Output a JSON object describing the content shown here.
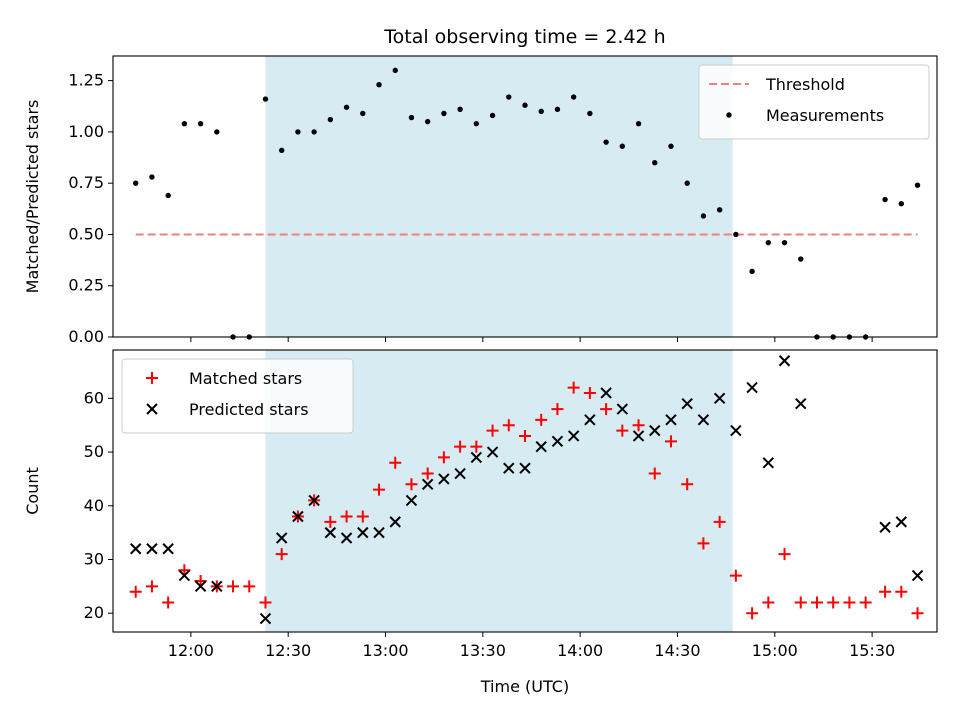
{
  "chart_data": [
    {
      "type": "scatter",
      "title": "Total observing time = 2.42 h",
      "ylabel": "Matched/Predicted stars",
      "xlabel": "",
      "xlim": [
        "11:36",
        "15:50"
      ],
      "ylim": [
        0,
        1.37
      ],
      "yticks": [
        0.0,
        0.25,
        0.5,
        0.75,
        1.0,
        1.25
      ],
      "ytick_labels": [
        "0.00",
        "0.25",
        "0.50",
        "0.75",
        "1.00",
        "1.25"
      ],
      "shaded_span": [
        "12:23",
        "14:47"
      ],
      "legend": {
        "placement": "top-right",
        "entries": [
          {
            "label": "Threshold",
            "kind": "dashed-line",
            "color": "#f08080"
          },
          {
            "label": "Measurements",
            "kind": "dot",
            "color": "#000000"
          }
        ]
      },
      "threshold": {
        "name": "Threshold",
        "value": 0.5,
        "x_range": [
          "11:43",
          "15:44"
        ],
        "color": "#f08080"
      },
      "series": [
        {
          "name": "Measurements",
          "color": "#000000",
          "points": [
            [
              "11:43",
              0.75
            ],
            [
              "11:48",
              0.78
            ],
            [
              "11:53",
              0.69
            ],
            [
              "11:58",
              1.04
            ],
            [
              "12:03",
              1.04
            ],
            [
              "12:08",
              1.0
            ],
            [
              "12:13",
              0.0
            ],
            [
              "12:18",
              0.0
            ],
            [
              "12:23",
              1.16
            ],
            [
              "12:28",
              0.91
            ],
            [
              "12:33",
              1.0
            ],
            [
              "12:38",
              1.0
            ],
            [
              "12:43",
              1.06
            ],
            [
              "12:48",
              1.12
            ],
            [
              "12:53",
              1.09
            ],
            [
              "12:58",
              1.23
            ],
            [
              "13:03",
              1.3
            ],
            [
              "13:08",
              1.07
            ],
            [
              "13:13",
              1.05
            ],
            [
              "13:18",
              1.09
            ],
            [
              "13:23",
              1.11
            ],
            [
              "13:28",
              1.04
            ],
            [
              "13:33",
              1.08
            ],
            [
              "13:38",
              1.17
            ],
            [
              "13:43",
              1.13
            ],
            [
              "13:48",
              1.1
            ],
            [
              "13:53",
              1.11
            ],
            [
              "13:58",
              1.17
            ],
            [
              "14:03",
              1.09
            ],
            [
              "14:08",
              0.95
            ],
            [
              "14:13",
              0.93
            ],
            [
              "14:18",
              1.04
            ],
            [
              "14:23",
              0.85
            ],
            [
              "14:28",
              0.93
            ],
            [
              "14:33",
              0.75
            ],
            [
              "14:38",
              0.59
            ],
            [
              "14:43",
              0.62
            ],
            [
              "14:48",
              0.5
            ],
            [
              "14:53",
              0.32
            ],
            [
              "14:58",
              0.46
            ],
            [
              "15:03",
              0.46
            ],
            [
              "15:08",
              0.38
            ],
            [
              "15:13",
              0.0
            ],
            [
              "15:18",
              0.0
            ],
            [
              "15:23",
              0.0
            ],
            [
              "15:28",
              0.0
            ],
            [
              "15:34",
              0.67
            ],
            [
              "15:39",
              0.65
            ],
            [
              "15:44",
              0.74
            ]
          ]
        }
      ]
    },
    {
      "type": "scatter",
      "title": "",
      "ylabel": "Count",
      "xlabel": "Time (UTC)",
      "xlim": [
        "11:36",
        "15:50"
      ],
      "xtick_labels": [
        "12:00",
        "12:30",
        "13:00",
        "13:30",
        "14:00",
        "14:30",
        "15:00",
        "15:30"
      ],
      "ylim": [
        16.5,
        69
      ],
      "yticks": [
        20,
        30,
        40,
        50,
        60
      ],
      "ytick_labels": [
        "20",
        "30",
        "40",
        "50",
        "60"
      ],
      "shaded_span": [
        "12:23",
        "14:47"
      ],
      "legend": {
        "placement": "top-left",
        "entries": [
          {
            "label": "Matched stars",
            "kind": "plus",
            "color": "#ff0000"
          },
          {
            "label": "Predicted stars",
            "kind": "cross",
            "color": "#000000"
          }
        ]
      },
      "series": [
        {
          "name": "Matched stars",
          "color": "#ff0000",
          "marker": "plus",
          "points": [
            [
              "11:43",
              24
            ],
            [
              "11:48",
              25
            ],
            [
              "11:53",
              22
            ],
            [
              "11:58",
              28
            ],
            [
              "12:03",
              26
            ],
            [
              "12:08",
              25
            ],
            [
              "12:13",
              25
            ],
            [
              "12:18",
              25
            ],
            [
              "12:23",
              22
            ],
            [
              "12:28",
              31
            ],
            [
              "12:33",
              38
            ],
            [
              "12:38",
              41
            ],
            [
              "12:43",
              37
            ],
            [
              "12:48",
              38
            ],
            [
              "12:53",
              38
            ],
            [
              "12:58",
              43
            ],
            [
              "13:03",
              48
            ],
            [
              "13:08",
              44
            ],
            [
              "13:13",
              46
            ],
            [
              "13:18",
              49
            ],
            [
              "13:23",
              51
            ],
            [
              "13:28",
              51
            ],
            [
              "13:33",
              54
            ],
            [
              "13:38",
              55
            ],
            [
              "13:43",
              53
            ],
            [
              "13:48",
              56
            ],
            [
              "13:53",
              58
            ],
            [
              "13:58",
              62
            ],
            [
              "14:03",
              61
            ],
            [
              "14:08",
              58
            ],
            [
              "14:13",
              54
            ],
            [
              "14:18",
              55
            ],
            [
              "14:23",
              46
            ],
            [
              "14:28",
              52
            ],
            [
              "14:33",
              44
            ],
            [
              "14:38",
              33
            ],
            [
              "14:43",
              37
            ],
            [
              "14:48",
              27
            ],
            [
              "14:53",
              20
            ],
            [
              "14:58",
              22
            ],
            [
              "15:03",
              31
            ],
            [
              "15:08",
              22
            ],
            [
              "15:13",
              22
            ],
            [
              "15:18",
              22
            ],
            [
              "15:23",
              22
            ],
            [
              "15:28",
              22
            ],
            [
              "15:34",
              24
            ],
            [
              "15:39",
              24
            ],
            [
              "15:44",
              20
            ]
          ]
        },
        {
          "name": "Predicted stars",
          "color": "#000000",
          "marker": "cross",
          "points": [
            [
              "11:43",
              32
            ],
            [
              "11:48",
              32
            ],
            [
              "11:53",
              32
            ],
            [
              "11:58",
              27
            ],
            [
              "12:03",
              25
            ],
            [
              "12:08",
              25
            ],
            [
              "12:23",
              19
            ],
            [
              "12:28",
              34
            ],
            [
              "12:33",
              38
            ],
            [
              "12:38",
              41
            ],
            [
              "12:43",
              35
            ],
            [
              "12:48",
              34
            ],
            [
              "12:53",
              35
            ],
            [
              "12:58",
              35
            ],
            [
              "13:03",
              37
            ],
            [
              "13:08",
              41
            ],
            [
              "13:13",
              44
            ],
            [
              "13:18",
              45
            ],
            [
              "13:23",
              46
            ],
            [
              "13:28",
              49
            ],
            [
              "13:33",
              50
            ],
            [
              "13:38",
              47
            ],
            [
              "13:43",
              47
            ],
            [
              "13:48",
              51
            ],
            [
              "13:53",
              52
            ],
            [
              "13:58",
              53
            ],
            [
              "14:03",
              56
            ],
            [
              "14:08",
              61
            ],
            [
              "14:13",
              58
            ],
            [
              "14:18",
              53
            ],
            [
              "14:23",
              54
            ],
            [
              "14:28",
              56
            ],
            [
              "14:33",
              59
            ],
            [
              "14:38",
              56
            ],
            [
              "14:43",
              60
            ],
            [
              "14:48",
              54
            ],
            [
              "14:53",
              62
            ],
            [
              "14:58",
              48
            ],
            [
              "15:03",
              67
            ],
            [
              "15:08",
              59
            ],
            [
              "15:34",
              36
            ],
            [
              "15:39",
              37
            ],
            [
              "15:44",
              27
            ]
          ]
        }
      ]
    }
  ]
}
